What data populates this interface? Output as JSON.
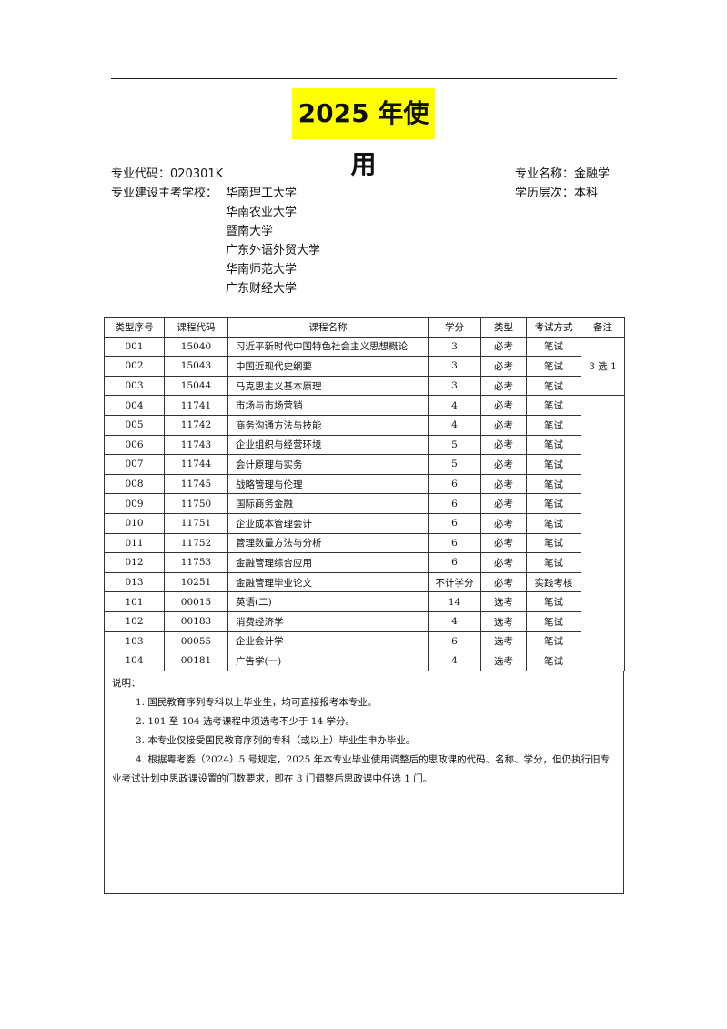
{
  "header": {
    "title": "2025 年使用"
  },
  "info": {
    "major_code": "专业代码：020301K",
    "major_name": "专业名称：金融学",
    "schools_label": "专业建设主考学校：",
    "schools": [
      "华南理工大学",
      "华南农业大学",
      "暨南大学",
      "广东外语外贸大学",
      "华南师范大学",
      "广东财经大学"
    ],
    "level": "学历层次：本科"
  },
  "table": {
    "columns": [
      "类型序号",
      "课程代码",
      "课程名称",
      "学分",
      "类型",
      "考试方式",
      "备注"
    ],
    "rows": [
      [
        "001",
        "15040",
        "习近平新时代中国特色社会主义思想概论",
        "3",
        "必考",
        "笔试"
      ],
      [
        "002",
        "15043",
        "中国近现代史纲要",
        "3",
        "必考",
        "笔试"
      ],
      [
        "003",
        "15044",
        "马克思主义基本原理",
        "3",
        "必考",
        "笔试"
      ],
      [
        "004",
        "11741",
        "市场与市场营销",
        "4",
        "必考",
        "笔试"
      ],
      [
        "005",
        "11742",
        "商务沟通方法与技能",
        "4",
        "必考",
        "笔试"
      ],
      [
        "006",
        "11743",
        "企业组织与经营环境",
        "5",
        "必考",
        "笔试"
      ],
      [
        "007",
        "11744",
        "会计原理与实务",
        "5",
        "必考",
        "笔试"
      ],
      [
        "008",
        "11745",
        "战略管理与伦理",
        "6",
        "必考",
        "笔试"
      ],
      [
        "009",
        "11750",
        "国际商务金融",
        "6",
        "必考",
        "笔试"
      ],
      [
        "010",
        "11751",
        "企业成本管理会计",
        "6",
        "必考",
        "笔试"
      ],
      [
        "011",
        "11752",
        "管理数量方法与分析",
        "6",
        "必考",
        "笔试"
      ],
      [
        "012",
        "11753",
        "金融管理综合应用",
        "6",
        "必考",
        "笔试"
      ],
      [
        "013",
        "10251",
        "金融管理毕业论文",
        "不计学分",
        "必考",
        "实践考核"
      ],
      [
        "101",
        "00015",
        "英语(二)",
        "14",
        "选考",
        "笔试"
      ],
      [
        "102",
        "00183",
        "消费经济学",
        "4",
        "选考",
        "笔试"
      ],
      [
        "103",
        "00055",
        "企业会计学",
        "6",
        "选考",
        "笔试"
      ],
      [
        "104",
        "00181",
        "广告学(一)",
        "4",
        "选考",
        "笔试"
      ]
    ],
    "remark": "3 选 1"
  },
  "notes": {
    "heading": "说明：",
    "items": [
      "1. 国民教育序列专科以上毕业生，均可直接报考本专业。",
      "2. 101 至 104 选考课程中须选考不少于 14 学分。",
      "3. 本专业仅接受国民教育序列的专科（或以上）毕业生申办毕业。",
      "4. 根据粤考委（2024）5 号规定，2025 年本专业毕业使用调整后的思政课的代码、名称、学分，但仍执行旧专业考试计划中思政课设置的门数要求，即在 3 门调整后思政课中任选 1 门。"
    ]
  }
}
